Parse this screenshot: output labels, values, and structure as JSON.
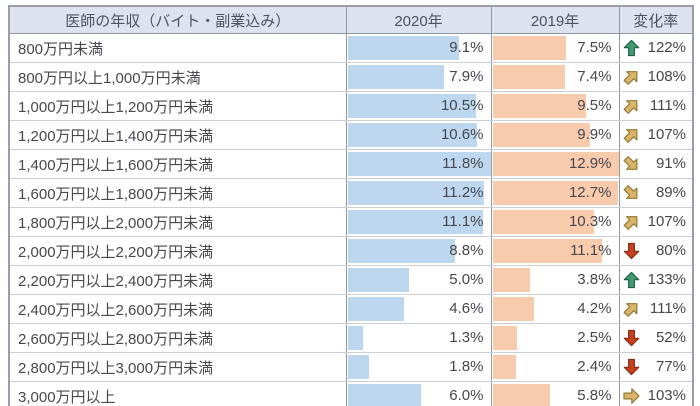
{
  "table": {
    "headers": {
      "income": "医師の年収（バイト・副業込み）",
      "year_2020": "2020年",
      "year_2019": "2019年",
      "change_rate": "変化率"
    },
    "rows": [
      {
        "label": "800万円未満",
        "v2020": 9.1,
        "v2019": 7.5,
        "change": 122,
        "arrow": "up"
      },
      {
        "label": "800万円以上1,000万円未満",
        "v2020": 7.9,
        "v2019": 7.4,
        "change": 108,
        "arrow": "up-right"
      },
      {
        "label": "1,000万円以上1,200万円未満",
        "v2020": 10.5,
        "v2019": 9.5,
        "change": 111,
        "arrow": "up-right"
      },
      {
        "label": "1,200万円以上1,400万円未満",
        "v2020": 10.6,
        "v2019": 9.9,
        "change": 107,
        "arrow": "up-right"
      },
      {
        "label": "1,400万円以上1,600万円未満",
        "v2020": 11.8,
        "v2019": 12.9,
        "change": 91,
        "arrow": "down-right"
      },
      {
        "label": "1,600万円以上1,800万円未満",
        "v2020": 11.2,
        "v2019": 12.7,
        "change": 89,
        "arrow": "down-right"
      },
      {
        "label": "1,800万円以上2,000万円未満",
        "v2020": 11.1,
        "v2019": 10.3,
        "change": 107,
        "arrow": "up-right"
      },
      {
        "label": "2,000万円以上2,200万円未満",
        "v2020": 8.8,
        "v2019": 11.1,
        "change": 80,
        "arrow": "down"
      },
      {
        "label": "2,200万円以上2,400万円未満",
        "v2020": 5.0,
        "v2019": 3.8,
        "change": 133,
        "arrow": "up"
      },
      {
        "label": "2,400万円以上2,600万円未満",
        "v2020": 4.6,
        "v2019": 4.2,
        "change": 111,
        "arrow": "up-right"
      },
      {
        "label": "2,600万円以上2,800万円未満",
        "v2020": 1.3,
        "v2019": 2.5,
        "change": 52,
        "arrow": "down"
      },
      {
        "label": "2,800万円以上3,000万円未満",
        "v2020": 1.8,
        "v2019": 2.4,
        "change": 77,
        "arrow": "down"
      },
      {
        "label": "3,000万円以上",
        "v2020": 6.0,
        "v2019": 5.8,
        "change": 103,
        "arrow": "right"
      }
    ]
  },
  "colors": {
    "bar_2020": "#bdd7ee",
    "bar_2019": "#f8cbad",
    "header_bg": "#dce3ee",
    "arrow_up_fill": "#459a70",
    "arrow_up_stroke": "#1c6145",
    "arrow_yellow_fill": "#d9b469",
    "arrow_yellow_stroke": "#927736",
    "arrow_down_fill": "#c5421f",
    "arrow_down_stroke": "#8a2a11"
  },
  "chart_data": {
    "type": "table",
    "title": "医師の年収（バイト・副業込み）別構成比と変化率",
    "categories": [
      "800万円未満",
      "800万円以上1,000万円未満",
      "1,000万円以上1,200万円未満",
      "1,200万円以上1,400万円未満",
      "1,400万円以上1,600万円未満",
      "1,600万円以上1,800万円未満",
      "1,800万円以上2,000万円未満",
      "2,000万円以上2,200万円未満",
      "2,200万円以上2,400万円未満",
      "2,400万円以上2,600万円未満",
      "2,600万円以上2,800万円未満",
      "2,800万円以上3,000万円未満",
      "3,000万円以上"
    ],
    "series": [
      {
        "name": "2020年",
        "unit": "%",
        "values": [
          9.1,
          7.9,
          10.5,
          10.6,
          11.8,
          11.2,
          11.1,
          8.8,
          5.0,
          4.6,
          1.3,
          1.8,
          6.0
        ],
        "bar_style": "data-bar",
        "bar_max": 11.8
      },
      {
        "name": "2019年",
        "unit": "%",
        "values": [
          7.5,
          7.4,
          9.5,
          9.9,
          12.9,
          12.7,
          10.3,
          11.1,
          3.8,
          4.2,
          2.5,
          2.4,
          5.8
        ],
        "bar_style": "data-bar",
        "bar_max": 12.9
      },
      {
        "name": "変化率",
        "unit": "%",
        "values": [
          122,
          108,
          111,
          107,
          91,
          89,
          107,
          80,
          133,
          111,
          52,
          77,
          103
        ],
        "icons": [
          "up",
          "up-right",
          "up-right",
          "up-right",
          "down-right",
          "down-right",
          "up-right",
          "down",
          "up",
          "up-right",
          "down",
          "down",
          "right"
        ]
      }
    ],
    "legend_position": "none",
    "grid": "table-borders"
  }
}
